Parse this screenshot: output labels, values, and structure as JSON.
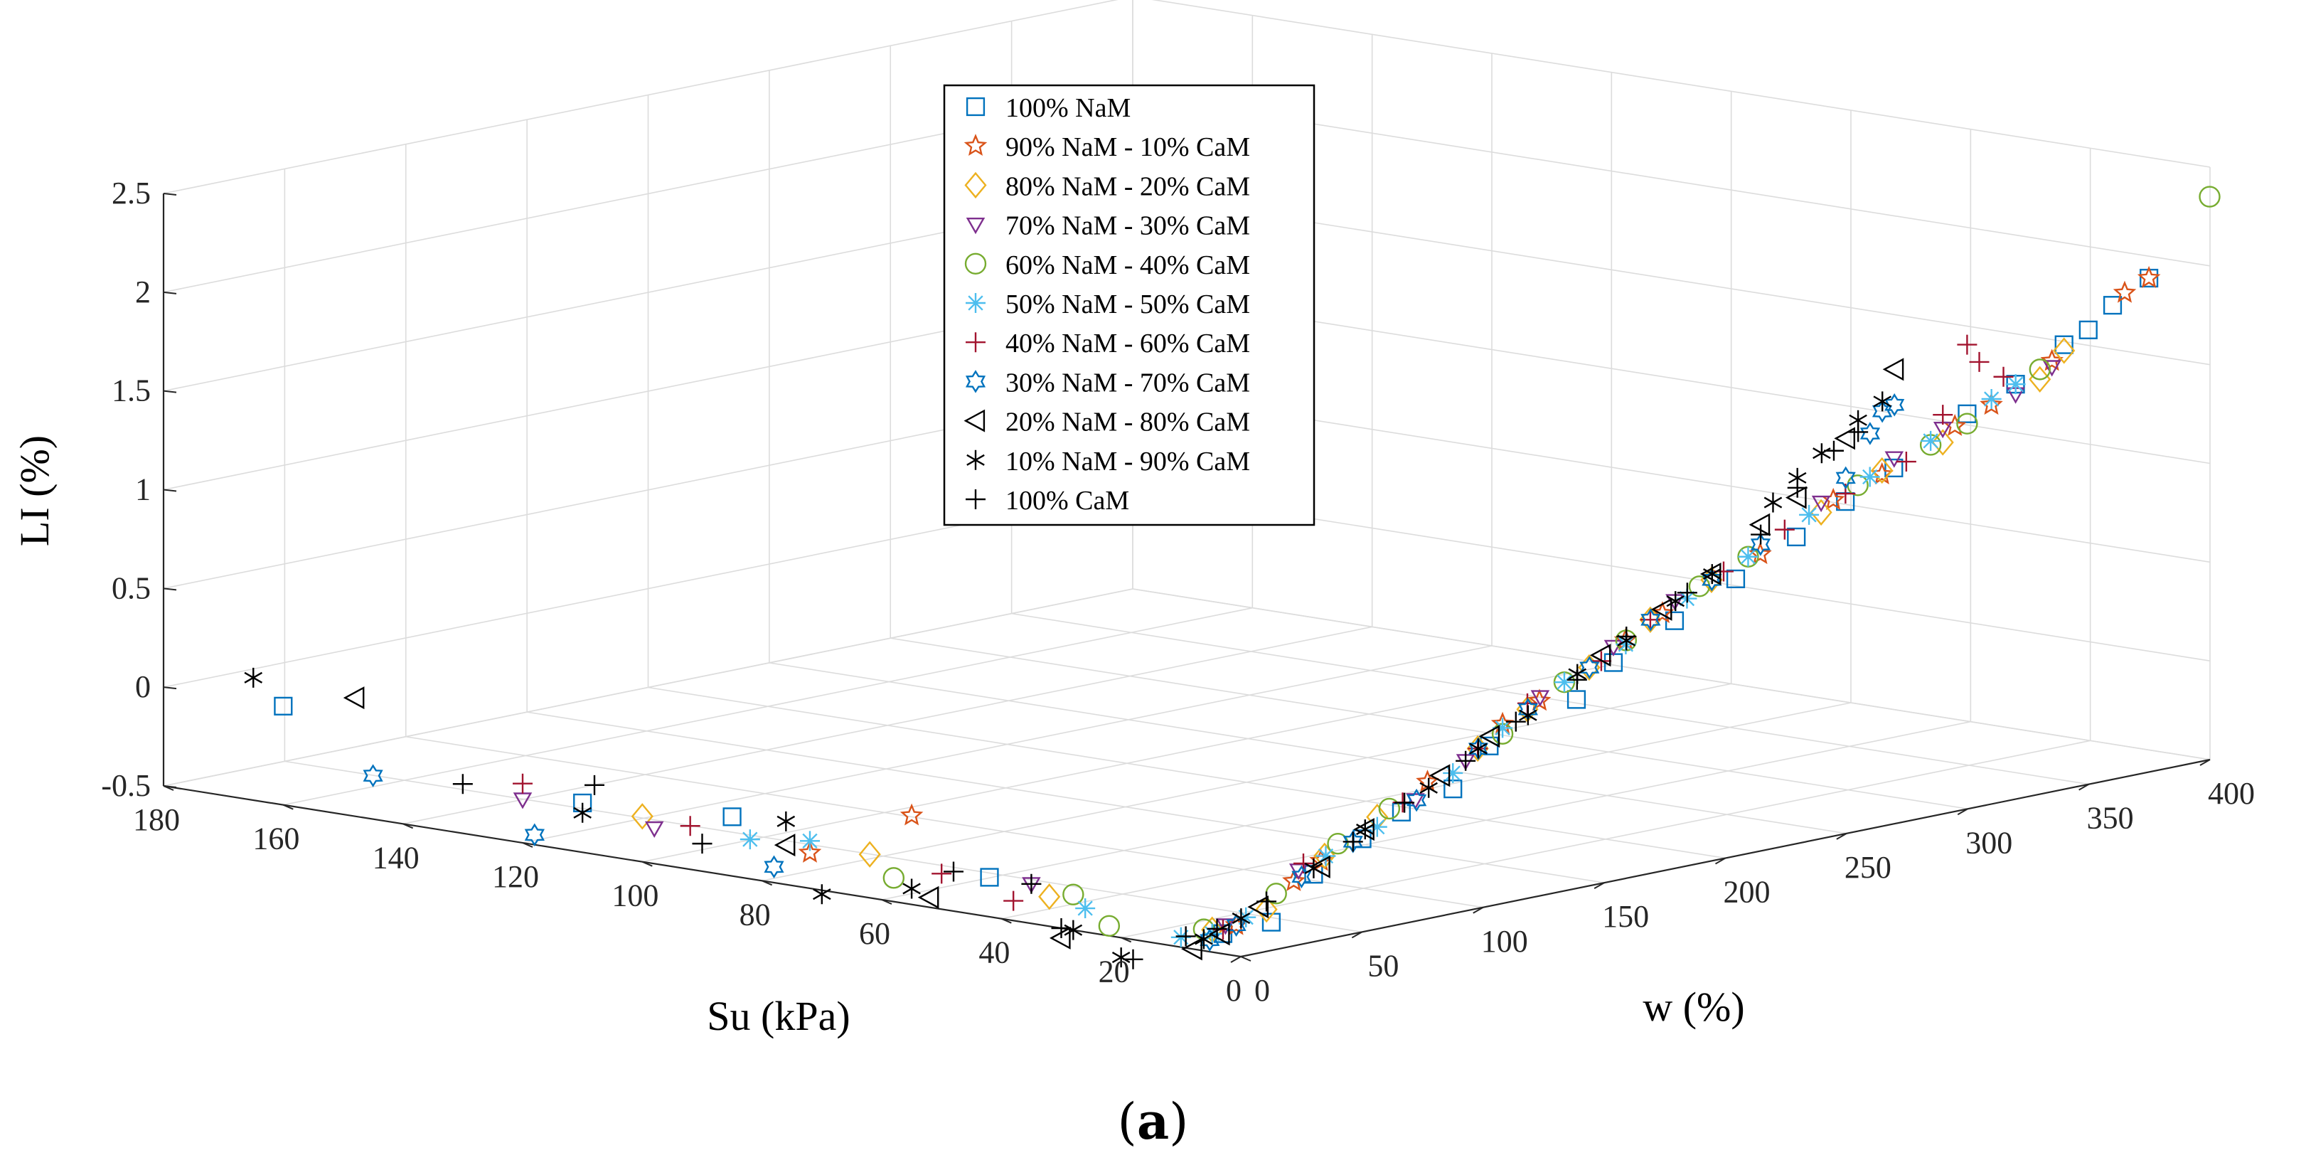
{
  "chart_data": {
    "type": "scatter",
    "projection": "3d",
    "title": "",
    "caption_open": "(",
    "caption_letter": "a",
    "caption_close": ")",
    "x": {
      "label": "Su (kPa)",
      "lim": [
        0,
        180
      ],
      "ticks": [
        0,
        20,
        40,
        60,
        80,
        100,
        120,
        140,
        160,
        180
      ]
    },
    "y": {
      "label": "w (%)",
      "lim": [
        0,
        400
      ],
      "ticks": [
        0,
        50,
        100,
        150,
        200,
        250,
        300,
        350,
        400
      ]
    },
    "z": {
      "label": "LI (%)",
      "lim": [
        -0.5,
        2.5
      ],
      "ticks": [
        -0.5,
        0,
        0.5,
        1,
        1.5,
        2,
        2.5
      ]
    },
    "grid": true,
    "legend_position": "top-center",
    "series": [
      {
        "name": "100% NaM",
        "marker": "square",
        "color": "#0072BD",
        "points": [
          [
            160,
            0,
            0
          ],
          [
            110,
            0,
            -0.25
          ],
          [
            85,
            0,
            -0.2
          ],
          [
            42,
            0,
            -0.3
          ],
          [
            5,
            5,
            -0.42
          ],
          [
            3,
            20,
            -0.39
          ],
          [
            2,
            55,
            -0.05
          ],
          [
            1,
            105,
            0.3
          ],
          [
            0.5,
            155,
            0.6
          ],
          [
            0.3,
            205,
            0.9
          ],
          [
            0.2,
            250,
            1.18
          ],
          [
            0.1,
            300,
            1.5
          ],
          [
            0.1,
            350,
            1.8
          ],
          [
            0.08,
            375,
            2.0
          ],
          [
            0.08,
            360,
            1.9
          ],
          [
            1,
            90,
            0.12
          ],
          [
            0.6,
            140,
            0.45
          ],
          [
            0.2,
            270,
            1.3
          ],
          [
            0.1,
            320,
            1.6
          ],
          [
            2,
            35,
            -0.18
          ],
          [
            1.5,
            70,
            0.05
          ],
          [
            0.4,
            180,
            0.75
          ],
          [
            0.3,
            230,
            1.05
          ],
          [
            0.1,
            340,
            1.75
          ]
        ]
      },
      {
        "name": "90% NaM - 10% CaM",
        "marker": "pentagram",
        "color": "#D95319",
        "points": [
          [
            55,
            0,
            -0.05
          ],
          [
            72,
            0,
            -0.32
          ],
          [
            4,
            8,
            -0.38
          ],
          [
            2,
            38,
            -0.12
          ],
          [
            1.2,
            80,
            0.18
          ],
          [
            0.7,
            125,
            0.48
          ],
          [
            0.4,
            175,
            0.8
          ],
          [
            0.25,
            215,
            1.0
          ],
          [
            0.15,
            265,
            1.28
          ],
          [
            0.1,
            310,
            1.52
          ],
          [
            0.09,
            365,
            1.95
          ],
          [
            0.08,
            375,
            2.0
          ],
          [
            2.5,
            28,
            -0.2
          ],
          [
            0.8,
            110,
            0.4
          ],
          [
            0.5,
            160,
            0.7
          ],
          [
            0.2,
            245,
            1.2
          ],
          [
            0.12,
            295,
            1.45
          ],
          [
            0.1,
            335,
            1.68
          ]
        ]
      },
      {
        "name": "80% NaM - 20% CaM",
        "marker": "diamond",
        "color": "#EDB120",
        "points": [
          [
            100,
            0,
            -0.27
          ],
          [
            62,
            0,
            -0.28
          ],
          [
            32,
            0,
            -0.35
          ],
          [
            6,
            3,
            -0.4
          ],
          [
            3,
            18,
            -0.32
          ],
          [
            1.5,
            60,
            0.05
          ],
          [
            0.9,
            100,
            0.3
          ],
          [
            0.5,
            145,
            0.6
          ],
          [
            0.3,
            195,
            0.92
          ],
          [
            0.2,
            240,
            1.15
          ],
          [
            0.12,
            290,
            1.38
          ],
          [
            0.1,
            340,
            1.72
          ],
          [
            0.09,
            330,
            1.6
          ],
          [
            2.2,
            40,
            -0.1
          ],
          [
            0.7,
            120,
            0.45
          ],
          [
            0.4,
            170,
            0.78
          ],
          [
            0.15,
            265,
            1.3
          ]
        ]
      },
      {
        "name": "70% NaM - 30% CaM",
        "marker": "triangle-down",
        "color": "#7E2F8E",
        "points": [
          [
            120,
            0,
            -0.28
          ],
          [
            98,
            0,
            -0.32
          ],
          [
            35,
            0,
            -0.3
          ],
          [
            5,
            6,
            -0.38
          ],
          [
            2.5,
            30,
            -0.15
          ],
          [
            1.2,
            75,
            0.1
          ],
          [
            0.6,
            125,
            0.5
          ],
          [
            0.35,
            180,
            0.85
          ],
          [
            0.2,
            240,
            1.2
          ],
          [
            0.12,
            290,
            1.45
          ],
          [
            0.1,
            335,
            1.65
          ],
          [
            0.09,
            320,
            1.55
          ],
          [
            0.9,
            95,
            0.25
          ],
          [
            0.5,
            155,
            0.68
          ],
          [
            0.15,
            270,
            1.35
          ]
        ]
      },
      {
        "name": "60% NaM - 40% CaM",
        "marker": "circle",
        "color": "#77AC30",
        "points": [
          [
            58,
            0,
            -0.38
          ],
          [
            28,
            0,
            -0.32
          ],
          [
            22,
            0,
            -0.45
          ],
          [
            7,
            2,
            -0.4
          ],
          [
            3,
            22,
            -0.25
          ],
          [
            1.5,
            65,
            0.08
          ],
          [
            0.8,
            110,
            0.35
          ],
          [
            0.4,
            160,
            0.7
          ],
          [
            0.25,
            210,
            1.0
          ],
          [
            0.15,
            255,
            1.25
          ],
          [
            0.1,
            300,
            1.45
          ],
          [
            0.08,
            330,
            1.65
          ],
          [
            0.06,
            400,
            2.35
          ],
          [
            2,
            45,
            -0.05
          ],
          [
            0.6,
            135,
            0.55
          ],
          [
            0.3,
            190,
            0.9
          ],
          [
            0.12,
            285,
            1.38
          ]
        ]
      },
      {
        "name": "50% NaM - 50% CaM",
        "marker": "asterisk",
        "color": "#4DBEEE",
        "points": [
          [
            82,
            0,
            -0.3
          ],
          [
            72,
            0,
            -0.26
          ],
          [
            26,
            0,
            -0.38
          ],
          [
            10,
            0,
            -0.45
          ],
          [
            6,
            3,
            -0.42
          ],
          [
            4,
            12,
            -0.35
          ],
          [
            2,
            40,
            -0.1
          ],
          [
            1,
            90,
            0.2
          ],
          [
            0.6,
            135,
            0.55
          ],
          [
            0.35,
            185,
            0.85
          ],
          [
            0.2,
            235,
            1.15
          ],
          [
            0.12,
            285,
            1.4
          ],
          [
            0.09,
            320,
            1.6
          ],
          [
            0.08,
            310,
            1.55
          ],
          [
            1.5,
            60,
            0.0
          ],
          [
            0.8,
            110,
            0.38
          ],
          [
            0.45,
            160,
            0.68
          ],
          [
            0.25,
            210,
            1.0
          ],
          [
            0.15,
            260,
            1.28
          ]
        ]
      },
      {
        "name": "40% NaM - 60% CaM",
        "marker": "plus",
        "color": "#A2142F",
        "points": [
          [
            120,
            0,
            -0.2
          ],
          [
            92,
            0,
            -0.28
          ],
          [
            50,
            0,
            -0.32
          ],
          [
            38,
            0,
            -0.4
          ],
          [
            5,
            5,
            -0.4
          ],
          [
            2.5,
            32,
            -0.12
          ],
          [
            1.3,
            70,
            0.1
          ],
          [
            0.7,
            120,
            0.48
          ],
          [
            0.4,
            170,
            0.78
          ],
          [
            0.22,
            225,
            1.1
          ],
          [
            0.14,
            275,
            1.32
          ],
          [
            0.1,
            315,
            1.65
          ],
          [
            0.09,
            305,
            1.75
          ],
          [
            0.1,
            300,
            1.85
          ],
          [
            0.11,
            290,
            1.52
          ],
          [
            0.9,
            100,
            0.3
          ],
          [
            0.5,
            150,
            0.62
          ],
          [
            0.3,
            200,
            0.95
          ],
          [
            0.18,
            250,
            1.22
          ]
        ]
      },
      {
        "name": "30% NaM - 70% CaM",
        "marker": "hexagram",
        "color": "#0072BD",
        "points": [
          [
            145,
            0,
            -0.28
          ],
          [
            118,
            0,
            -0.45
          ],
          [
            78,
            0,
            -0.42
          ],
          [
            6,
            2,
            -0.45
          ],
          [
            4,
            8,
            -0.38
          ],
          [
            2,
            30,
            -0.18
          ],
          [
            1,
            75,
            0.1
          ],
          [
            0.6,
            120,
            0.45
          ],
          [
            0.35,
            170,
            0.78
          ],
          [
            0.2,
            215,
            1.05
          ],
          [
            0.14,
            250,
            1.3
          ],
          [
            0.12,
            260,
            1.5
          ],
          [
            0.11,
            265,
            1.6
          ],
          [
            0.1,
            270,
            1.62
          ],
          [
            1.5,
            50,
            -0.05
          ],
          [
            0.8,
            100,
            0.3
          ],
          [
            0.45,
            145,
            0.6
          ],
          [
            0.25,
            195,
            0.92
          ]
        ]
      },
      {
        "name": "20% NaM - 80% CaM",
        "marker": "triangle-left",
        "color": "#000000",
        "points": [
          [
            148,
            0,
            0.1
          ],
          [
            76,
            0,
            -0.3
          ],
          [
            52,
            0,
            -0.45
          ],
          [
            30,
            0,
            -0.55
          ],
          [
            8,
            0,
            -0.5
          ],
          [
            5,
            4,
            -0.42
          ],
          [
            3,
            15,
            -0.3
          ],
          [
            1.5,
            55,
            0.0
          ],
          [
            0.8,
            105,
            0.35
          ],
          [
            0.45,
            150,
            0.65
          ],
          [
            0.25,
            195,
            0.95
          ],
          [
            0.15,
            230,
            1.25
          ],
          [
            0.12,
            250,
            1.5
          ],
          [
            0.1,
            270,
            1.8
          ],
          [
            2,
            38,
            -0.15
          ],
          [
            1,
            85,
            0.2
          ],
          [
            0.35,
            175,
            0.82
          ],
          [
            0.18,
            215,
            1.15
          ]
        ]
      },
      {
        "name": "10% NaM - 90% CaM",
        "marker": "star",
        "color": "#000000",
        "points": [
          [
            165,
            0,
            0.12
          ],
          [
            110,
            0,
            -0.3
          ],
          [
            76,
            0,
            -0.18
          ],
          [
            70,
            0,
            -0.52
          ],
          [
            55,
            0,
            -0.42
          ],
          [
            28,
            0,
            -0.5
          ],
          [
            20,
            0,
            -0.6
          ],
          [
            7,
            2,
            -0.45
          ],
          [
            4,
            10,
            -0.35
          ],
          [
            2,
            35,
            -0.15
          ],
          [
            1,
            80,
            0.15
          ],
          [
            0.6,
            120,
            0.42
          ],
          [
            0.35,
            160,
            0.7
          ],
          [
            0.2,
            195,
            0.95
          ],
          [
            0.14,
            220,
            1.25
          ],
          [
            0.11,
            240,
            1.45
          ],
          [
            0.1,
            255,
            1.58
          ],
          [
            0.09,
            265,
            1.65
          ],
          [
            0.12,
            230,
            1.35
          ],
          [
            1.5,
            55,
            0.0
          ],
          [
            0.8,
            100,
            0.3
          ],
          [
            0.45,
            140,
            0.58
          ],
          [
            0.25,
            180,
            0.85
          ]
        ]
      },
      {
        "name": "100% CaM",
        "marker": "plus",
        "color": "#000000",
        "points": [
          [
            130,
            0,
            -0.25
          ],
          [
            108,
            0,
            -0.15
          ],
          [
            90,
            0,
            -0.36
          ],
          [
            48,
            0,
            -0.3
          ],
          [
            35,
            0,
            -0.3
          ],
          [
            30,
            0,
            -0.5
          ],
          [
            18,
            0,
            -0.6
          ],
          [
            10,
            2,
            -0.45
          ],
          [
            6,
            5,
            -0.4
          ],
          [
            3,
            18,
            -0.28
          ],
          [
            1.5,
            50,
            -0.05
          ],
          [
            0.9,
            95,
            0.25
          ],
          [
            0.5,
            140,
            0.55
          ],
          [
            0.3,
            185,
            0.88
          ],
          [
            0.18,
            215,
            1.1
          ],
          [
            0.12,
            230,
            1.3
          ],
          [
            0.1,
            245,
            1.45
          ],
          [
            0.09,
            255,
            1.52
          ],
          [
            1,
            70,
            0.1
          ],
          [
            0.6,
            115,
            0.4
          ],
          [
            0.35,
            160,
            0.72
          ]
        ]
      }
    ]
  }
}
